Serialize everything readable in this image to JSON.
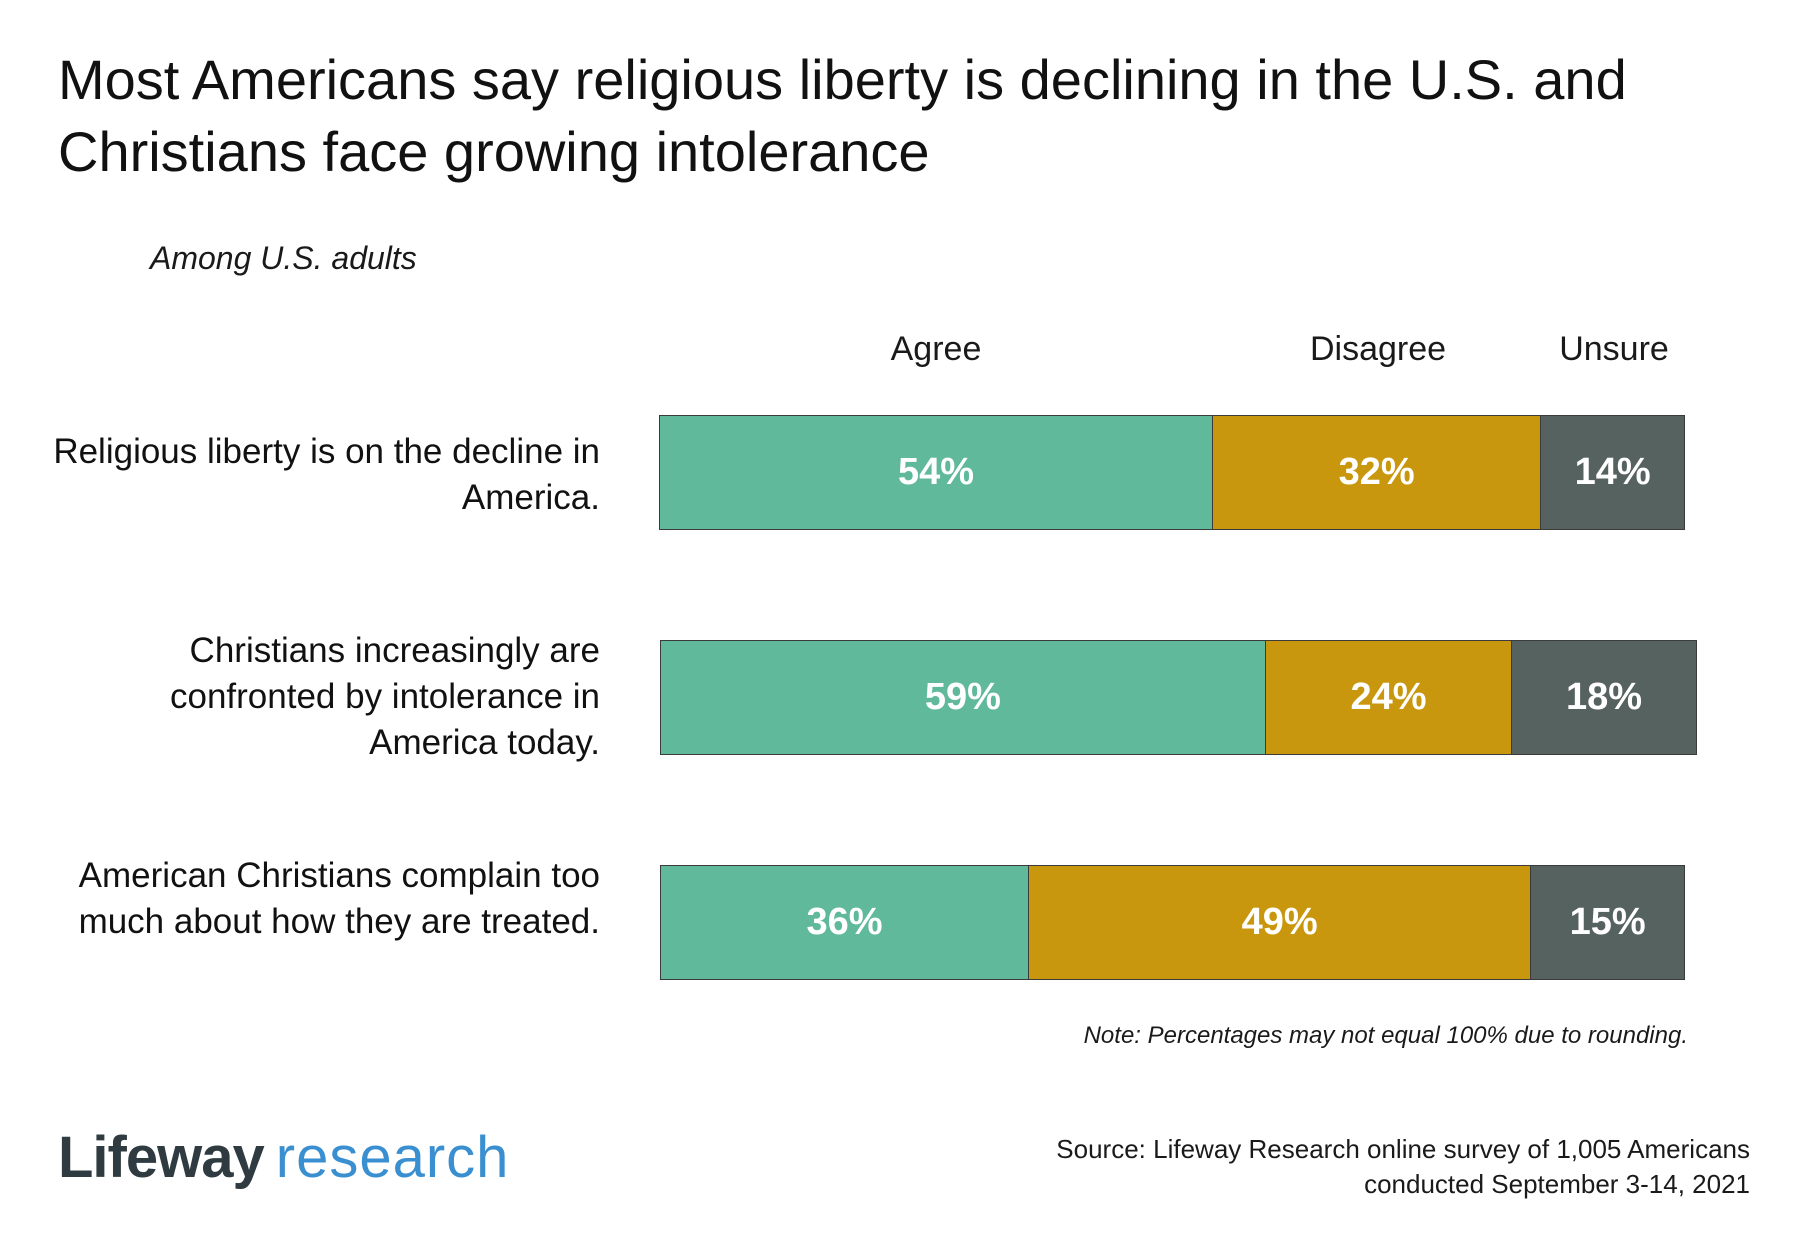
{
  "title": "Most Americans say religious liberty is declining in the U.S. and Christians face growing intolerance",
  "subtitle": "Among U.S. adults",
  "colors": {
    "agree": "#5fb99a",
    "disagree": "#c9970d",
    "unsure": "#56625f"
  },
  "chart_data": {
    "type": "bar",
    "orientation": "horizontal",
    "stacked": true,
    "categories": [
      "Religious liberty is on the decline in America.",
      "Christians increasingly are confronted by intolerance in America today.",
      "American Christians complain too much about how they are treated."
    ],
    "series": [
      {
        "name": "Agree",
        "values": [
          54,
          59,
          36
        ]
      },
      {
        "name": "Disagree",
        "values": [
          32,
          24,
          49
        ]
      },
      {
        "name": "Unsure",
        "values": [
          14,
          18,
          15
        ]
      }
    ],
    "data_labels": [
      [
        "54%",
        "32%",
        "14%"
      ],
      [
        "59%",
        "24%",
        "18%"
      ],
      [
        "36%",
        "49%",
        "15%"
      ]
    ],
    "legend_placement": "top",
    "grid": false,
    "xlim": [
      0,
      100
    ]
  },
  "note": "Note: Percentages may not equal 100% due to rounding.",
  "logo": {
    "part1": "Lifeway",
    "part2": "research"
  },
  "source": {
    "line1": "Source: Lifeway Research online survey of 1,005 Americans",
    "line2": "conducted September 3-14, 2021"
  }
}
